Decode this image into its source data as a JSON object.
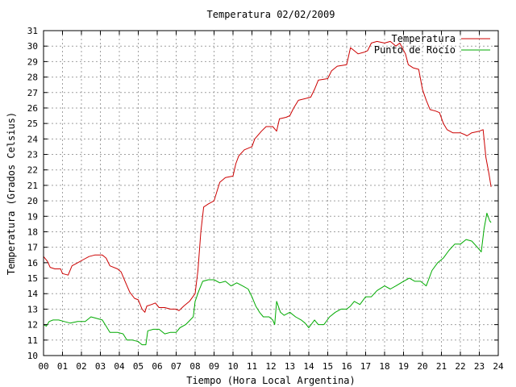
{
  "chart_data": {
    "type": "line",
    "title": "Temperatura 02/02/2009",
    "xlabel": "Tiempo (Hora Local Argentina)",
    "ylabel": "Temperatura (Grados Celsius)",
    "xlim": [
      0,
      24
    ],
    "ylim": [
      10,
      31
    ],
    "grid": true,
    "legend_position": "top-right",
    "x_ticks": [
      {
        "value": 0,
        "label": "00"
      },
      {
        "value": 1,
        "label": "01"
      },
      {
        "value": 2,
        "label": "02"
      },
      {
        "value": 3,
        "label": "03"
      },
      {
        "value": 4,
        "label": "04"
      },
      {
        "value": 5,
        "label": "05"
      },
      {
        "value": 6,
        "label": "06"
      },
      {
        "value": 7,
        "label": "07"
      },
      {
        "value": 8,
        "label": "08"
      },
      {
        "value": 9,
        "label": "09"
      },
      {
        "value": 10,
        "label": "10"
      },
      {
        "value": 11,
        "label": "11"
      },
      {
        "value": 12,
        "label": "12"
      },
      {
        "value": 13,
        "label": "13"
      },
      {
        "value": 14,
        "label": "14"
      },
      {
        "value": 15,
        "label": "15"
      },
      {
        "value": 16,
        "label": "16"
      },
      {
        "value": 17,
        "label": "17"
      },
      {
        "value": 18,
        "label": "18"
      },
      {
        "value": 19,
        "label": "19"
      },
      {
        "value": 20,
        "label": "20"
      },
      {
        "value": 21,
        "label": "21"
      },
      {
        "value": 22,
        "label": "22"
      },
      {
        "value": 23,
        "label": "23"
      },
      {
        "value": 24,
        "label": "24"
      }
    ],
    "y_ticks": [
      10,
      11,
      12,
      13,
      14,
      15,
      16,
      17,
      18,
      19,
      20,
      21,
      22,
      23,
      24,
      25,
      26,
      27,
      28,
      29,
      30,
      31
    ],
    "series": [
      {
        "name": "Temperatura",
        "color": "#cc0000",
        "points": [
          [
            0.0,
            16.4
          ],
          [
            0.2,
            16.1
          ],
          [
            0.35,
            15.7
          ],
          [
            0.6,
            15.6
          ],
          [
            0.9,
            15.6
          ],
          [
            1.0,
            15.3
          ],
          [
            1.3,
            15.2
          ],
          [
            1.5,
            15.8
          ],
          [
            1.8,
            16.0
          ],
          [
            2.1,
            16.2
          ],
          [
            2.4,
            16.4
          ],
          [
            2.7,
            16.5
          ],
          [
            3.1,
            16.5
          ],
          [
            3.3,
            16.3
          ],
          [
            3.5,
            15.8
          ],
          [
            3.9,
            15.6
          ],
          [
            4.1,
            15.4
          ],
          [
            4.3,
            14.8
          ],
          [
            4.55,
            14.1
          ],
          [
            4.8,
            13.7
          ],
          [
            5.0,
            13.6
          ],
          [
            5.2,
            13.0
          ],
          [
            5.35,
            12.8
          ],
          [
            5.45,
            13.2
          ],
          [
            5.7,
            13.3
          ],
          [
            5.9,
            13.4
          ],
          [
            6.1,
            13.1
          ],
          [
            6.4,
            13.1
          ],
          [
            6.7,
            13.0
          ],
          [
            7.0,
            13.0
          ],
          [
            7.15,
            12.9
          ],
          [
            7.4,
            13.2
          ],
          [
            7.7,
            13.5
          ],
          [
            8.0,
            14.0
          ],
          [
            8.15,
            15.5
          ],
          [
            8.3,
            18.0
          ],
          [
            8.45,
            19.6
          ],
          [
            8.7,
            19.8
          ],
          [
            9.0,
            20.0
          ],
          [
            9.15,
            20.6
          ],
          [
            9.3,
            21.2
          ],
          [
            9.6,
            21.5
          ],
          [
            10.0,
            21.6
          ],
          [
            10.15,
            22.4
          ],
          [
            10.3,
            22.9
          ],
          [
            10.6,
            23.3
          ],
          [
            11.0,
            23.5
          ],
          [
            11.15,
            24.0
          ],
          [
            11.5,
            24.5
          ],
          [
            11.75,
            24.8
          ],
          [
            12.1,
            24.8
          ],
          [
            12.3,
            24.5
          ],
          [
            12.45,
            25.3
          ],
          [
            12.8,
            25.4
          ],
          [
            13.0,
            25.5
          ],
          [
            13.2,
            26.0
          ],
          [
            13.45,
            26.5
          ],
          [
            13.8,
            26.6
          ],
          [
            14.1,
            26.7
          ],
          [
            14.3,
            27.2
          ],
          [
            14.5,
            27.8
          ],
          [
            15.0,
            27.9
          ],
          [
            15.2,
            28.4
          ],
          [
            15.5,
            28.7
          ],
          [
            16.0,
            28.8
          ],
          [
            16.2,
            29.9
          ],
          [
            16.4,
            29.7
          ],
          [
            16.6,
            29.5
          ],
          [
            16.9,
            29.6
          ],
          [
            17.1,
            29.7
          ],
          [
            17.3,
            30.2
          ],
          [
            17.6,
            30.3
          ],
          [
            18.0,
            30.2
          ],
          [
            18.3,
            30.3
          ],
          [
            18.6,
            30.0
          ],
          [
            18.8,
            30.2
          ],
          [
            19.1,
            29.5
          ],
          [
            19.25,
            28.8
          ],
          [
            19.5,
            28.6
          ],
          [
            19.8,
            28.5
          ],
          [
            20.0,
            27.2
          ],
          [
            20.2,
            26.5
          ],
          [
            20.4,
            25.9
          ],
          [
            20.7,
            25.8
          ],
          [
            20.9,
            25.7
          ],
          [
            21.1,
            25.0
          ],
          [
            21.3,
            24.6
          ],
          [
            21.6,
            24.4
          ],
          [
            22.0,
            24.4
          ],
          [
            22.2,
            24.3
          ],
          [
            22.35,
            24.2
          ],
          [
            22.6,
            24.4
          ],
          [
            23.0,
            24.5
          ],
          [
            23.2,
            24.6
          ],
          [
            23.35,
            22.8
          ],
          [
            23.5,
            21.8
          ],
          [
            23.62,
            20.9
          ]
        ]
      },
      {
        "name": "Punto de Rocío",
        "color": "#00aa00",
        "points": [
          [
            0.0,
            12.0
          ],
          [
            0.15,
            11.9
          ],
          [
            0.3,
            12.2
          ],
          [
            0.5,
            12.3
          ],
          [
            0.8,
            12.3
          ],
          [
            1.1,
            12.2
          ],
          [
            1.4,
            12.1
          ],
          [
            1.8,
            12.2
          ],
          [
            2.2,
            12.2
          ],
          [
            2.5,
            12.5
          ],
          [
            2.8,
            12.4
          ],
          [
            3.1,
            12.3
          ],
          [
            3.3,
            11.9
          ],
          [
            3.5,
            11.5
          ],
          [
            3.9,
            11.5
          ],
          [
            4.2,
            11.4
          ],
          [
            4.4,
            11.0
          ],
          [
            4.7,
            11.0
          ],
          [
            5.0,
            10.9
          ],
          [
            5.2,
            10.7
          ],
          [
            5.4,
            10.7
          ],
          [
            5.5,
            11.6
          ],
          [
            5.8,
            11.7
          ],
          [
            6.1,
            11.7
          ],
          [
            6.4,
            11.4
          ],
          [
            6.7,
            11.5
          ],
          [
            7.0,
            11.5
          ],
          [
            7.2,
            11.8
          ],
          [
            7.5,
            12.0
          ],
          [
            7.9,
            12.5
          ],
          [
            8.0,
            13.5
          ],
          [
            8.2,
            14.2
          ],
          [
            8.4,
            14.8
          ],
          [
            8.7,
            14.9
          ],
          [
            9.0,
            14.9
          ],
          [
            9.3,
            14.7
          ],
          [
            9.6,
            14.8
          ],
          [
            9.9,
            14.5
          ],
          [
            10.2,
            14.7
          ],
          [
            10.5,
            14.5
          ],
          [
            10.8,
            14.3
          ],
          [
            11.0,
            13.8
          ],
          [
            11.2,
            13.2
          ],
          [
            11.4,
            12.8
          ],
          [
            11.6,
            12.5
          ],
          [
            11.9,
            12.5
          ],
          [
            12.1,
            12.3
          ],
          [
            12.2,
            12.0
          ],
          [
            12.3,
            13.5
          ],
          [
            12.5,
            12.8
          ],
          [
            12.7,
            12.6
          ],
          [
            13.0,
            12.8
          ],
          [
            13.3,
            12.5
          ],
          [
            13.6,
            12.3
          ],
          [
            13.8,
            12.1
          ],
          [
            14.0,
            11.8
          ],
          [
            14.3,
            12.3
          ],
          [
            14.5,
            12.0
          ],
          [
            14.8,
            12.0
          ],
          [
            15.1,
            12.5
          ],
          [
            15.4,
            12.8
          ],
          [
            15.7,
            13.0
          ],
          [
            16.0,
            13.0
          ],
          [
            16.2,
            13.2
          ],
          [
            16.4,
            13.5
          ],
          [
            16.7,
            13.3
          ],
          [
            17.0,
            13.8
          ],
          [
            17.3,
            13.8
          ],
          [
            17.6,
            14.2
          ],
          [
            18.0,
            14.5
          ],
          [
            18.3,
            14.3
          ],
          [
            18.6,
            14.5
          ],
          [
            19.0,
            14.8
          ],
          [
            19.3,
            15.0
          ],
          [
            19.6,
            14.8
          ],
          [
            19.9,
            14.8
          ],
          [
            20.2,
            14.5
          ],
          [
            20.5,
            15.5
          ],
          [
            20.8,
            16.0
          ],
          [
            21.1,
            16.3
          ],
          [
            21.4,
            16.8
          ],
          [
            21.7,
            17.2
          ],
          [
            22.0,
            17.2
          ],
          [
            22.3,
            17.5
          ],
          [
            22.6,
            17.4
          ],
          [
            22.9,
            17.0
          ],
          [
            23.1,
            16.7
          ],
          [
            23.25,
            18.2
          ],
          [
            23.4,
            19.2
          ],
          [
            23.55,
            18.7
          ],
          [
            23.62,
            18.6
          ]
        ]
      }
    ]
  }
}
